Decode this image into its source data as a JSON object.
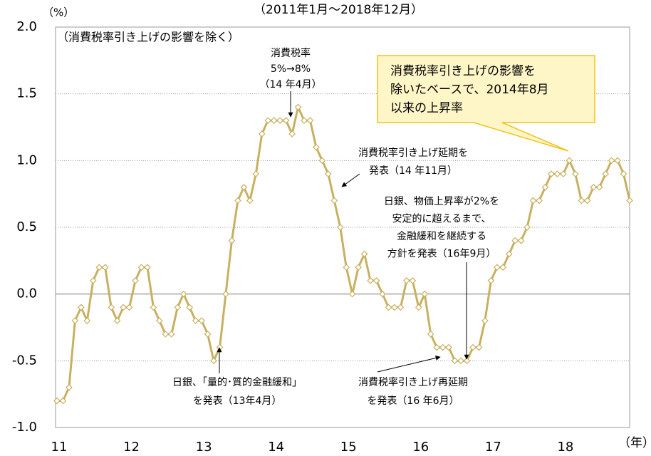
{
  "chart_data": {
    "type": "line",
    "title": "（2011年1月～2018年12月）",
    "subtitle": "（消費税率引き上げの影響を除く）",
    "y_label": "（%）",
    "x_label": "（年）",
    "categories": [
      "11",
      null,
      null,
      null,
      null,
      null,
      null,
      null,
      null,
      null,
      null,
      null,
      "12",
      null,
      null,
      null,
      null,
      null,
      null,
      null,
      null,
      null,
      null,
      null,
      "13",
      null,
      null,
      null,
      null,
      null,
      null,
      null,
      null,
      null,
      null,
      null,
      "14",
      null,
      null,
      null,
      null,
      null,
      null,
      null,
      null,
      null,
      null,
      null,
      "15",
      null,
      null,
      null,
      null,
      null,
      null,
      null,
      null,
      null,
      null,
      null,
      "16",
      null,
      null,
      null,
      null,
      null,
      null,
      null,
      null,
      null,
      null,
      null,
      "17",
      null,
      null,
      null,
      null,
      null,
      null,
      null,
      null,
      null,
      null,
      null,
      "18",
      null,
      null,
      null,
      null,
      null,
      null,
      null,
      null,
      null,
      null,
      null
    ],
    "series": [
      {
        "color": "#c8b060",
        "values": [
          -0.8,
          -0.8,
          -0.7,
          -0.2,
          -0.1,
          -0.2,
          0.1,
          0.2,
          0.2,
          -0.1,
          -0.2,
          -0.1,
          -0.1,
          0.1,
          0.2,
          0.2,
          -0.1,
          -0.2,
          -0.3,
          -0.3,
          -0.1,
          0.0,
          -0.1,
          -0.2,
          -0.2,
          -0.3,
          -0.5,
          -0.4,
          0.0,
          0.4,
          0.7,
          0.8,
          0.7,
          0.9,
          1.2,
          1.3,
          1.3,
          1.3,
          1.3,
          1.2,
          1.4,
          1.3,
          1.3,
          1.1,
          1.0,
          0.9,
          0.7,
          0.5,
          0.2,
          0.0,
          0.2,
          0.3,
          0.1,
          0.1,
          0.0,
          -0.1,
          -0.1,
          -0.1,
          0.1,
          0.1,
          -0.1,
          0.0,
          -0.3,
          -0.4,
          -0.4,
          -0.4,
          -0.5,
          -0.5,
          -0.5,
          -0.4,
          -0.4,
          -0.2,
          0.1,
          0.2,
          0.2,
          0.3,
          0.4,
          0.4,
          0.5,
          0.7,
          0.7,
          0.8,
          0.9,
          0.9,
          0.9,
          1.0,
          0.9,
          0.7,
          0.7,
          0.8,
          0.8,
          0.9,
          1.0,
          1.0,
          0.9,
          0.7
        ]
      }
    ],
    "ylim": [
      -1.0,
      2.0
    ],
    "yticks": [
      {
        "value": -1.0,
        "label": "-1.0"
      },
      -0.5,
      {
        "value": 0.0,
        "label": "0.0"
      },
      0.5,
      {
        "value": 1.0,
        "label": "1.0"
      },
      1.5,
      {
        "value": 2.0,
        "label": "2.0"
      }
    ],
    "grid": true,
    "annotations": [
      {
        "lines": [
          "消費税率",
          "5%→8%",
          "（14 年4月）"
        ]
      },
      {
        "lines": [
          "消費税率引き上げ延期を",
          "発表（14 年11月）"
        ]
      },
      {
        "lines": [
          "日銀、物価上昇率が2%を",
          "安定的に超えるまで、",
          "金融緩和を継続する",
          "方針を発表（16年9月）"
        ]
      },
      {
        "lines": [
          "日銀、「量的･質的金融緩和」",
          "を発表（13年4月）"
        ]
      },
      {
        "lines": [
          "消費税率引き上げ再延期",
          "を発表（16 年6月）"
        ]
      },
      {
        "lines": [
          "消費税率引き上げの影響を",
          "除いたベースで、2014年8月",
          "以来の上昇率"
        ]
      }
    ]
  }
}
